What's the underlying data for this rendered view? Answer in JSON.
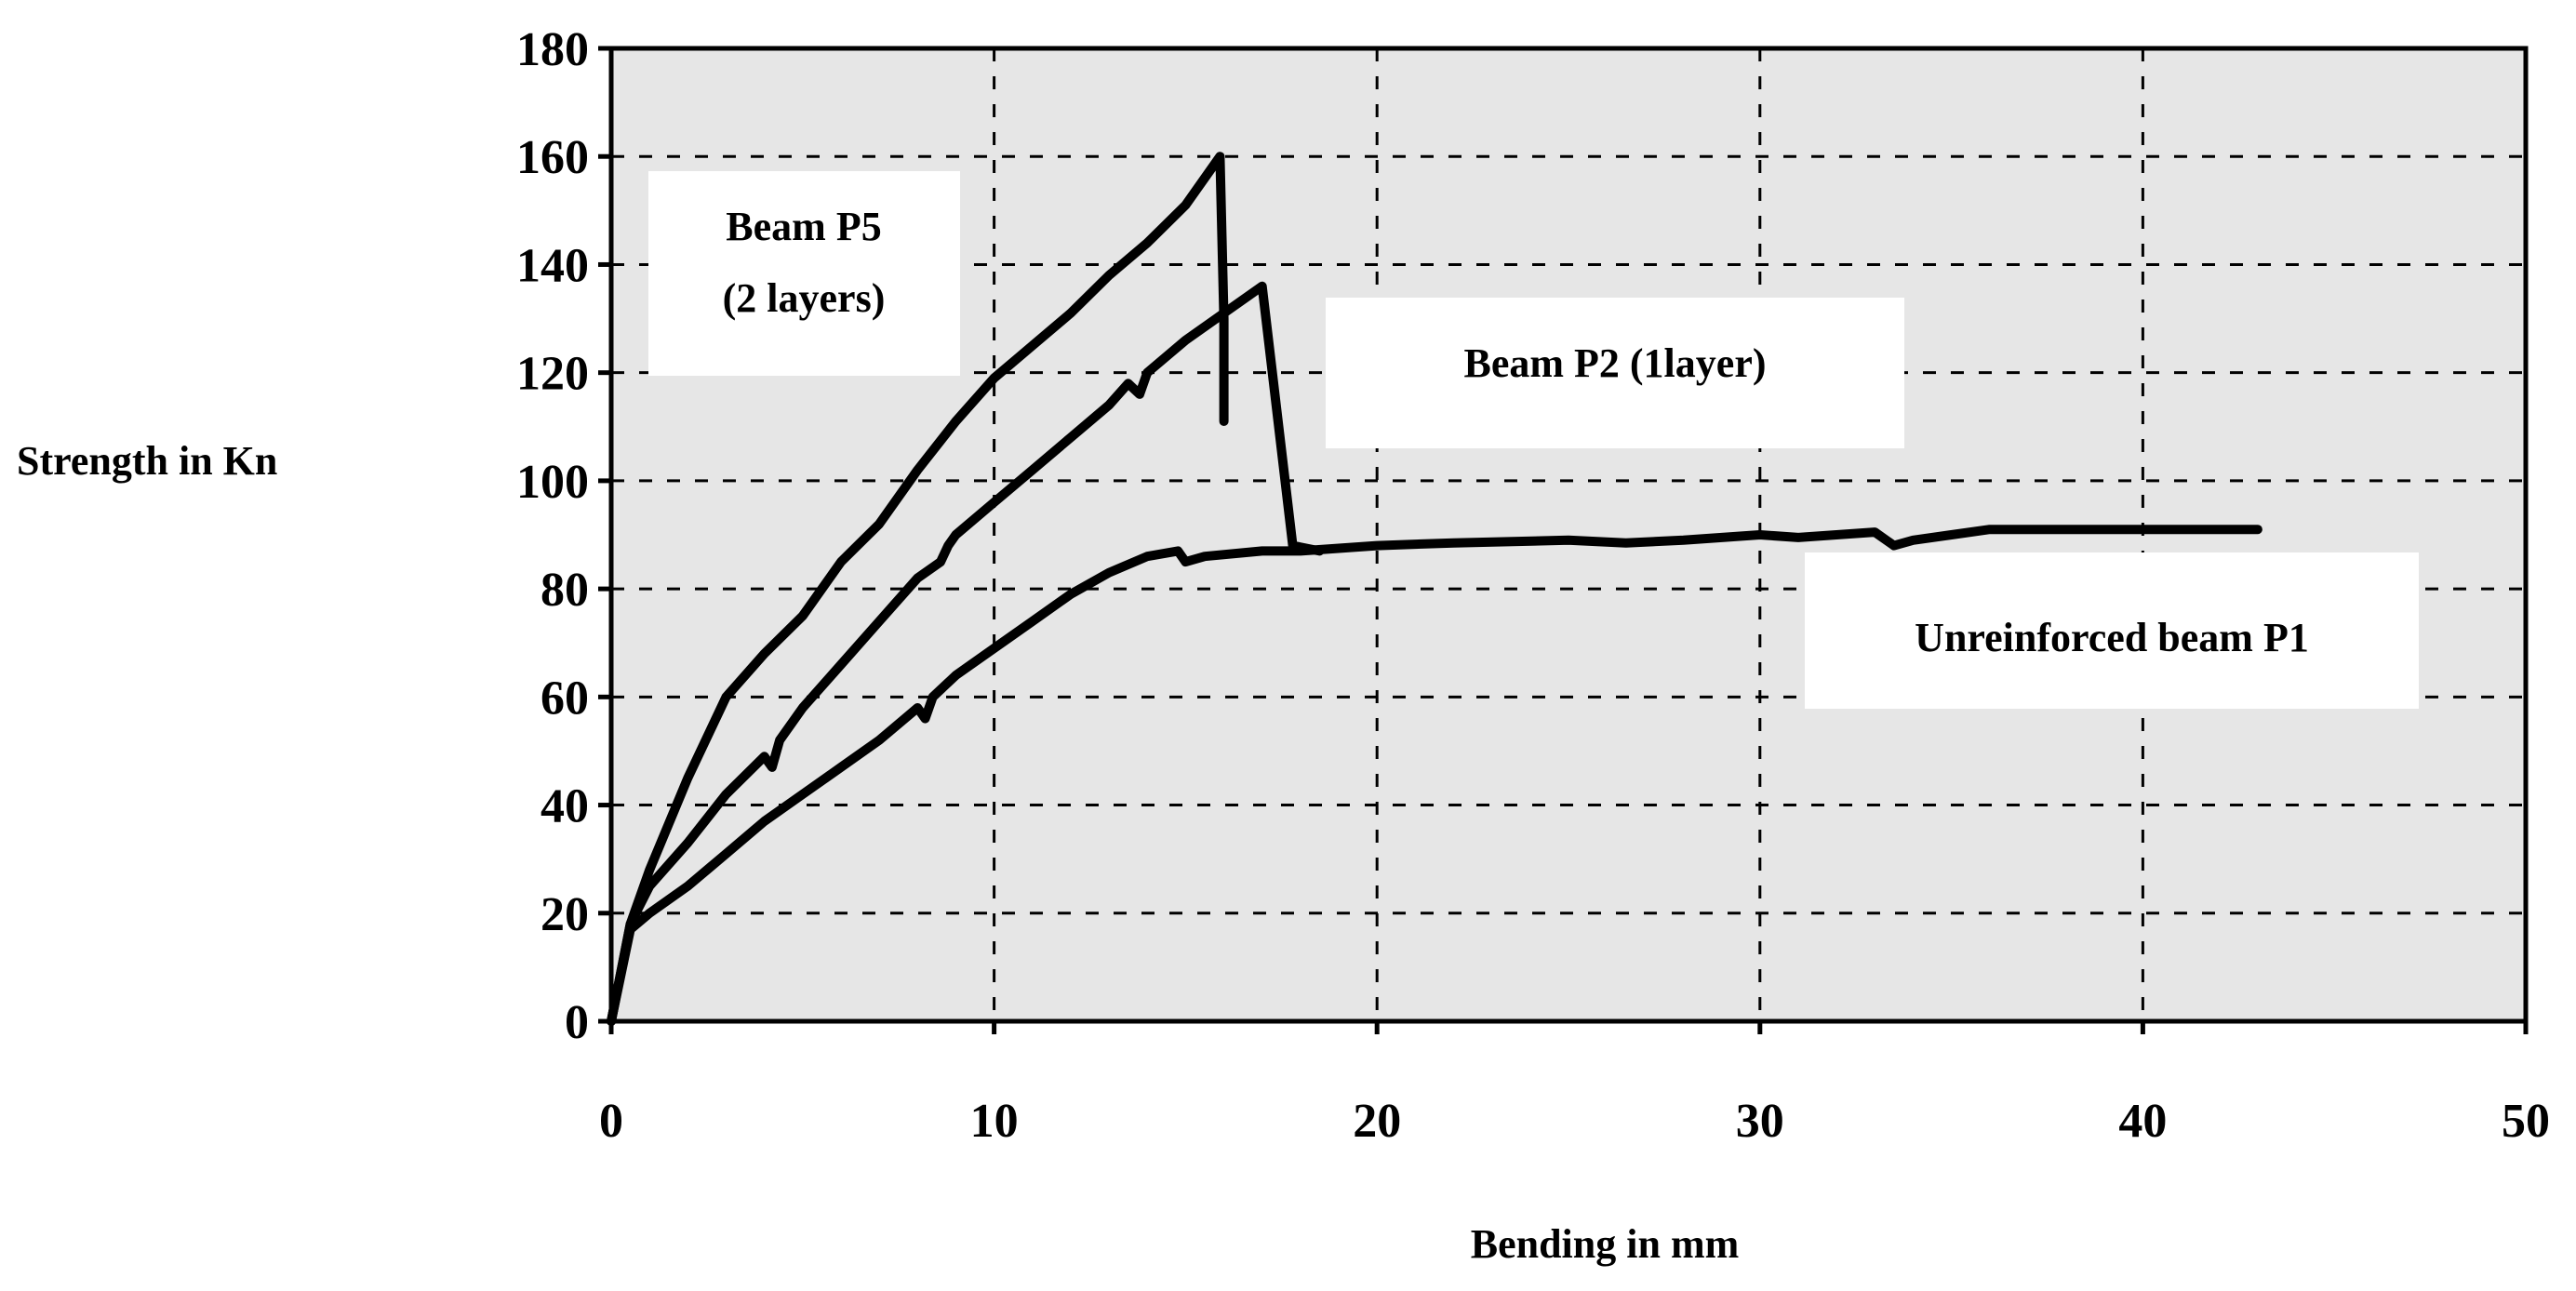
{
  "colors": {
    "plot_background": "#e6e6e6",
    "line": "#000000",
    "grid": "#000000",
    "annotation_box": "#ffffff"
  },
  "chart_data": {
    "type": "line",
    "title": "",
    "xlabel": "Bending in mm",
    "ylabel": "Strength in Kn",
    "xlim": [
      0,
      50
    ],
    "ylim": [
      0,
      180
    ],
    "x_ticks": [
      0,
      10,
      20,
      30,
      40,
      50
    ],
    "y_ticks": [
      0,
      20,
      40,
      60,
      80,
      100,
      120,
      140,
      160,
      180
    ],
    "x_tick_labels": [
      "0",
      "10",
      "20",
      "30",
      "40",
      "50"
    ],
    "y_tick_labels": [
      "0",
      "20",
      "40",
      "60",
      "80",
      "100",
      "120",
      "140",
      "160",
      "180"
    ],
    "grid": true,
    "legend": "none",
    "series": [
      {
        "name": "Beam P5 (2 layers)",
        "x": [
          0,
          0.5,
          1,
          2,
          3,
          4,
          5,
          6,
          7,
          8,
          9,
          10,
          11,
          12,
          13,
          14,
          15,
          15.9,
          16,
          16
        ],
        "y": [
          0,
          18,
          28,
          45,
          60,
          68,
          75,
          85,
          92,
          102,
          111,
          119,
          125,
          131,
          138,
          144,
          151,
          160,
          130,
          111
        ]
      },
      {
        "name": "Beam P2 (1layer)",
        "x": [
          0,
          0.5,
          1,
          2,
          3,
          4,
          4.2,
          4.4,
          5,
          6,
          7,
          8,
          8.6,
          8.8,
          9,
          10,
          11,
          12,
          13,
          13.5,
          13.8,
          14,
          15,
          16,
          17,
          17.8,
          18.5
        ],
        "y": [
          0,
          18,
          25,
          33,
          42,
          49,
          47,
          52,
          58,
          66,
          74,
          82,
          85,
          88,
          90,
          96,
          102,
          108,
          114,
          118,
          116,
          120,
          126,
          131,
          136,
          88,
          87
        ]
      },
      {
        "name": "Unreinforced beam P1",
        "x": [
          0,
          0.5,
          1,
          2,
          3,
          4,
          5,
          6,
          7,
          8,
          8.2,
          8.4,
          9,
          10,
          11,
          12,
          13,
          14,
          14.8,
          15,
          15.5,
          17,
          18,
          20,
          22,
          25,
          26.5,
          28,
          30,
          31,
          32,
          33,
          33.5,
          34,
          35,
          36,
          38,
          40,
          42,
          43
        ],
        "y": [
          0,
          17,
          20,
          25,
          31,
          37,
          42,
          47,
          52,
          58,
          56,
          60,
          64,
          69,
          74,
          79,
          83,
          86,
          87,
          85,
          86,
          87,
          87,
          88,
          88.5,
          89,
          88.5,
          89,
          90,
          89.5,
          90,
          90.5,
          88,
          89,
          90,
          91,
          91,
          91,
          91,
          91
        ]
      }
    ],
    "annotations": [
      {
        "lines": [
          "Beam P5",
          "(2 layers)"
        ]
      },
      {
        "lines": [
          "Beam P2 (1layer)"
        ]
      },
      {
        "lines": [
          "Unreinforced beam P1"
        ]
      }
    ]
  }
}
